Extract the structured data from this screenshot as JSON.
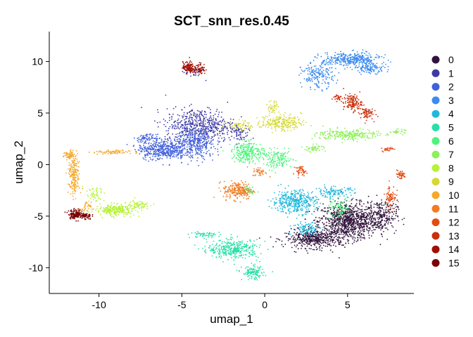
{
  "chart_data": {
    "type": "scatter",
    "title": "SCT_snn_res.0.45",
    "xlabel": "umap_1",
    "ylabel": "umap_2",
    "xlim": [
      -13,
      9
    ],
    "ylim": [
      -12.5,
      12.9
    ],
    "xticks": [
      -10,
      -5,
      0,
      5
    ],
    "yticks": [
      -10,
      -5,
      0,
      5,
      10
    ],
    "grid": false,
    "legend_position": "right",
    "series": [
      {
        "name": "0",
        "color": "#30123b",
        "clusters": [
          [
            5.0,
            -5.5,
            1.6,
            1.6,
            900
          ],
          [
            3.0,
            -7.2,
            1.6,
            0.8,
            450
          ],
          [
            7.0,
            -5.0,
            0.9,
            1.4,
            250
          ]
        ]
      },
      {
        "name": "1",
        "color": "#3f3aa3",
        "clusters": [
          [
            -3.9,
            3.8,
            1.9,
            1.5,
            550
          ],
          [
            -4.3,
            9.0,
            0.6,
            0.6,
            35
          ],
          [
            -1.6,
            3.0,
            0.5,
            0.8,
            60
          ]
        ]
      },
      {
        "name": "2",
        "color": "#4060db",
        "clusters": [
          [
            -6.2,
            1.5,
            1.3,
            0.9,
            450
          ],
          [
            -4.2,
            2.0,
            1.1,
            1.4,
            350
          ],
          [
            -7.1,
            2.6,
            0.5,
            0.3,
            60
          ]
        ]
      },
      {
        "name": "3",
        "color": "#3b8bf0",
        "clusters": [
          [
            5.2,
            10.2,
            1.6,
            0.6,
            350
          ],
          [
            3.2,
            8.6,
            0.9,
            1.1,
            180
          ],
          [
            6.4,
            9.4,
            0.8,
            0.5,
            120
          ]
        ]
      },
      {
        "name": "4",
        "color": "#1fb9dd",
        "clusters": [
          [
            1.8,
            -3.6,
            1.2,
            1.0,
            400
          ],
          [
            4.2,
            -2.7,
            1.1,
            0.5,
            120
          ],
          [
            2.6,
            -6.2,
            0.8,
            0.6,
            100
          ]
        ]
      },
      {
        "name": "5",
        "color": "#26e0a8",
        "clusters": [
          [
            -1.9,
            -8.2,
            1.4,
            0.8,
            350
          ],
          [
            -0.7,
            -10.5,
            0.6,
            0.6,
            120
          ],
          [
            -3.6,
            -6.8,
            0.8,
            0.3,
            60
          ]
        ]
      },
      {
        "name": "6",
        "color": "#4cf57a",
        "clusters": [
          [
            -1.0,
            1.2,
            0.9,
            0.9,
            250
          ],
          [
            0.8,
            0.5,
            0.8,
            0.8,
            150
          ],
          [
            4.4,
            -4.3,
            0.7,
            0.8,
            80
          ],
          [
            -1.0,
            -2.4,
            0.4,
            0.4,
            40
          ]
        ]
      },
      {
        "name": "7",
        "color": "#8df05a",
        "clusters": [
          [
            5.0,
            2.9,
            1.7,
            0.5,
            250
          ],
          [
            8.0,
            3.2,
            0.4,
            0.2,
            30
          ],
          [
            3.0,
            1.6,
            0.6,
            0.3,
            50
          ]
        ]
      },
      {
        "name": "8",
        "color": "#b6f237",
        "clusters": [
          [
            -9.0,
            -4.4,
            1.1,
            0.5,
            250
          ],
          [
            -7.6,
            -3.9,
            0.6,
            0.3,
            60
          ],
          [
            -10.3,
            -3.0,
            0.6,
            0.7,
            50
          ]
        ]
      },
      {
        "name": "9",
        "color": "#d6d932",
        "clusters": [
          [
            1.0,
            4.1,
            1.1,
            0.7,
            220
          ],
          [
            0.5,
            5.6,
            0.3,
            0.6,
            40
          ],
          [
            -1.5,
            3.8,
            0.7,
            0.4,
            60
          ]
        ]
      },
      {
        "name": "10",
        "color": "#f5a82a",
        "clusters": [
          [
            -11.5,
            -1.0,
            0.3,
            1.8,
            200
          ],
          [
            -11.8,
            0.9,
            0.3,
            0.4,
            60
          ],
          [
            -9.3,
            1.2,
            1.0,
            0.2,
            70
          ],
          [
            -10.8,
            -4.2,
            0.3,
            0.5,
            30
          ]
        ]
      },
      {
        "name": "11",
        "color": "#f27b25",
        "clusters": [
          [
            -1.6,
            -2.5,
            0.8,
            0.8,
            220
          ],
          [
            -0.3,
            -0.7,
            0.4,
            0.4,
            40
          ]
        ]
      },
      {
        "name": "12",
        "color": "#e14c13",
        "clusters": [
          [
            7.6,
            -3.1,
            0.3,
            1.1,
            70
          ],
          [
            8.2,
            -1.0,
            0.3,
            0.4,
            50
          ],
          [
            7.4,
            1.5,
            0.3,
            0.2,
            30
          ],
          [
            2.2,
            -0.6,
            0.3,
            0.4,
            40
          ]
        ]
      },
      {
        "name": "13",
        "color": "#c92f0b",
        "clusters": [
          [
            5.3,
            6.0,
            0.5,
            0.7,
            130
          ],
          [
            6.1,
            5.0,
            0.4,
            0.6,
            70
          ],
          [
            4.4,
            6.5,
            0.3,
            0.3,
            30
          ]
        ]
      },
      {
        "name": "14",
        "color": "#a00f04",
        "clusters": [
          [
            -4.6,
            9.4,
            0.3,
            0.5,
            120
          ],
          [
            -3.9,
            9.3,
            0.3,
            0.5,
            60
          ]
        ]
      },
      {
        "name": "15",
        "color": "#7a0403",
        "clusters": [
          [
            -11.4,
            -4.8,
            0.4,
            0.4,
            150
          ],
          [
            -10.8,
            -5.0,
            0.3,
            0.3,
            50
          ]
        ]
      }
    ]
  }
}
